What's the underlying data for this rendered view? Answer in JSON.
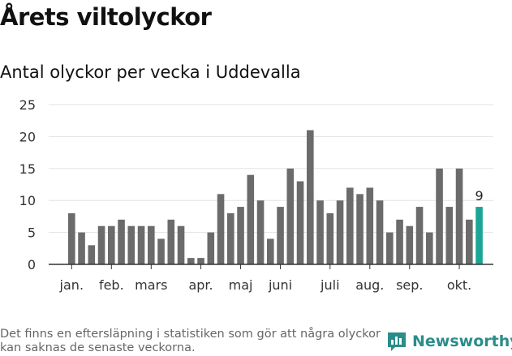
{
  "header": {
    "title": "Årets viltolyckor",
    "subtitle": "Antal olyckor per vecka i Uddevalla"
  },
  "chart_data": {
    "type": "bar",
    "title": "Årets viltolyckor",
    "subtitle": "Antal olyckor per vecka i Uddevalla",
    "values": [
      8,
      5,
      3,
      6,
      6,
      7,
      6,
      6,
      6,
      4,
      7,
      6,
      1,
      1,
      5,
      11,
      8,
      9,
      14,
      10,
      4,
      9,
      15,
      13,
      21,
      10,
      8,
      10,
      12,
      11,
      12,
      10,
      5,
      7,
      6,
      9,
      5,
      15,
      9,
      15,
      7,
      9
    ],
    "month_labels": [
      {
        "label": "jan.",
        "week_index": 0
      },
      {
        "label": "feb.",
        "week_index": 4
      },
      {
        "label": "mars",
        "week_index": 8
      },
      {
        "label": "apr.",
        "week_index": 13
      },
      {
        "label": "maj",
        "week_index": 17
      },
      {
        "label": "juni",
        "week_index": 21
      },
      {
        "label": "juli",
        "week_index": 26
      },
      {
        "label": "aug.",
        "week_index": 30
      },
      {
        "label": "sep.",
        "week_index": 34
      },
      {
        "label": "okt.",
        "week_index": 39
      }
    ],
    "yticks": [
      0,
      5,
      10,
      15,
      20,
      25
    ],
    "ylim": [
      0,
      25
    ],
    "grid": true,
    "highlight_last": true,
    "last_value_label": "9",
    "colors": {
      "bar": "#6b6b6b",
      "highlight": "#1aa596",
      "grid": "#e3e3e3",
      "axis": "#333333"
    }
  },
  "footer": {
    "note": "Det finns en eftersläpning i statistiken som gör att några olyckor kan saknas de senaste veckorna.",
    "brand": "Newsworthy",
    "brand_icon": "newsworthy-chart-icon"
  }
}
